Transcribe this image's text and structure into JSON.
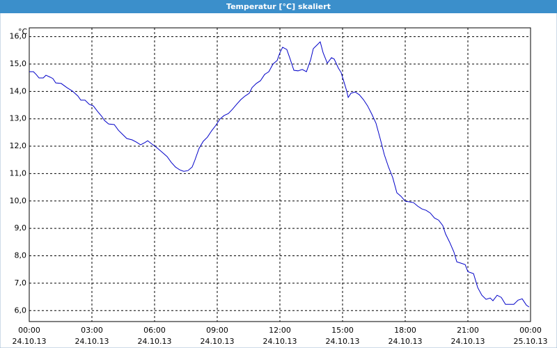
{
  "chart_data": {
    "type": "line",
    "title": "Temperatur [°C] skaliert",
    "y_unit": "°C",
    "x": [
      0,
      0.2,
      0.33,
      0.47,
      0.67,
      0.8,
      1.0,
      1.13,
      1.27,
      1.53,
      1.8,
      2.07,
      2.33,
      2.47,
      2.67,
      2.87,
      3.07,
      3.27,
      3.47,
      3.6,
      3.8,
      4.07,
      4.27,
      4.47,
      4.67,
      4.93,
      5.13,
      5.33,
      5.53,
      5.67,
      5.87,
      6.07,
      6.33,
      6.6,
      6.8,
      7.0,
      7.2,
      7.4,
      7.6,
      7.8,
      7.93,
      8.13,
      8.33,
      8.53,
      8.73,
      8.93,
      9.13,
      9.33,
      9.53,
      9.73,
      9.93,
      10.13,
      10.33,
      10.53,
      10.67,
      10.87,
      11.07,
      11.27,
      11.47,
      11.67,
      11.87,
      12.0,
      12.13,
      12.33,
      12.47,
      12.67,
      12.87,
      13.07,
      13.27,
      13.47,
      13.6,
      13.8,
      13.93,
      14.07,
      14.27,
      14.47,
      14.6,
      14.8,
      14.93,
      15.07,
      15.2,
      15.27,
      15.4,
      15.6,
      15.8,
      16.0,
      16.2,
      16.4,
      16.6,
      16.8,
      17.0,
      17.2,
      17.4,
      17.6,
      17.8,
      18.0,
      18.2,
      18.4,
      18.6,
      18.8,
      19.0,
      19.2,
      19.4,
      19.6,
      19.8,
      19.93,
      20.13,
      20.33,
      20.47,
      20.67,
      20.87,
      21.0,
      21.27,
      21.47,
      21.67,
      21.87,
      22.07,
      22.2,
      22.4,
      22.6,
      22.8,
      23.07,
      23.2,
      23.4,
      23.6,
      23.8,
      23.93
    ],
    "series": [
      {
        "name": "Temperatur",
        "color": "#0000c8",
        "values": [
          14.72,
          14.72,
          14.62,
          14.49,
          14.49,
          14.59,
          14.52,
          14.47,
          14.31,
          14.29,
          14.14,
          14.01,
          13.83,
          13.68,
          13.68,
          13.53,
          13.47,
          13.27,
          13.09,
          12.94,
          12.81,
          12.79,
          12.58,
          12.43,
          12.28,
          12.23,
          12.15,
          12.05,
          12.13,
          12.2,
          12.08,
          11.97,
          11.8,
          11.62,
          11.41,
          11.24,
          11.14,
          11.08,
          11.11,
          11.24,
          11.49,
          11.92,
          12.18,
          12.33,
          12.56,
          12.76,
          12.99,
          13.12,
          13.19,
          13.35,
          13.53,
          13.7,
          13.83,
          13.93,
          14.14,
          14.29,
          14.39,
          14.62,
          14.72,
          15.0,
          15.13,
          15.41,
          15.61,
          15.53,
          15.23,
          14.77,
          14.75,
          14.8,
          14.72,
          15.15,
          15.56,
          15.71,
          15.81,
          15.41,
          15.03,
          15.23,
          15.18,
          14.85,
          14.69,
          14.34,
          14.01,
          13.78,
          13.93,
          13.98,
          13.88,
          13.7,
          13.47,
          13.17,
          12.84,
          12.28,
          11.69,
          11.24,
          10.86,
          10.3,
          10.17,
          9.99,
          9.97,
          9.94,
          9.81,
          9.71,
          9.66,
          9.56,
          9.38,
          9.3,
          9.1,
          8.8,
          8.49,
          8.14,
          7.78,
          7.73,
          7.68,
          7.42,
          7.35,
          6.84,
          6.56,
          6.41,
          6.46,
          6.36,
          6.56,
          6.48,
          6.23,
          6.23,
          6.23,
          6.38,
          6.43,
          6.2,
          6.13
        ]
      }
    ],
    "xlim": [
      0,
      24
    ],
    "ylim": [
      5.6,
      16.32
    ],
    "xticks": [
      {
        "value": 0,
        "label": "00:00",
        "date": "24.10.13"
      },
      {
        "value": 3,
        "label": "03:00",
        "date": "24.10.13"
      },
      {
        "value": 6,
        "label": "06:00",
        "date": "24.10.13"
      },
      {
        "value": 9,
        "label": "09:00",
        "date": "24.10.13"
      },
      {
        "value": 12,
        "label": "12:00",
        "date": "24.10.13"
      },
      {
        "value": 15,
        "label": "15:00",
        "date": "24.10.13"
      },
      {
        "value": 18,
        "label": "18:00",
        "date": "24.10.13"
      },
      {
        "value": 21,
        "label": "21:00",
        "date": "24.10.13"
      },
      {
        "value": 24,
        "label": "00:00",
        "date": "25.10.13"
      }
    ],
    "yticks": [
      {
        "value": 6,
        "label": "6,0"
      },
      {
        "value": 7,
        "label": "7,0"
      },
      {
        "value": 8,
        "label": "8,0"
      },
      {
        "value": 9,
        "label": "9,0"
      },
      {
        "value": 10,
        "label": "10,0"
      },
      {
        "value": 11,
        "label": "11,0"
      },
      {
        "value": 12,
        "label": "12,0"
      },
      {
        "value": 13,
        "label": "13,0"
      },
      {
        "value": 14,
        "label": "14,0"
      },
      {
        "value": 15,
        "label": "15,0"
      },
      {
        "value": 16,
        "label": "16,0"
      }
    ],
    "grid": true
  }
}
